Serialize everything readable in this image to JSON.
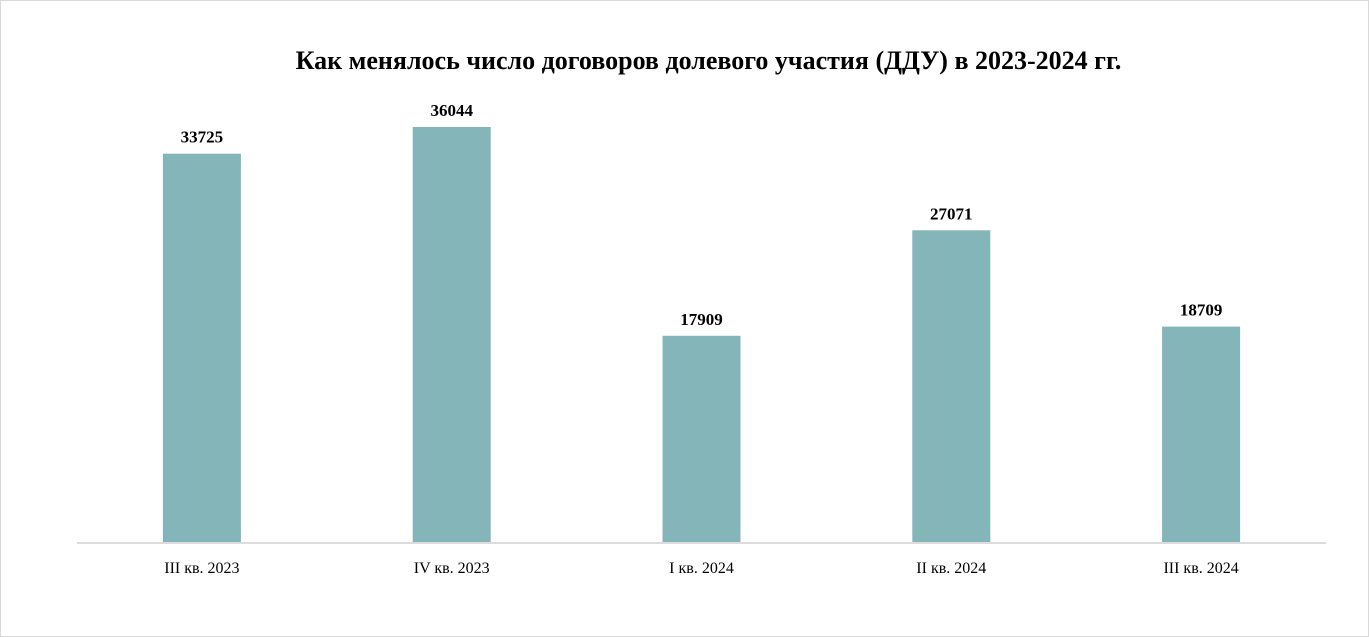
{
  "chart_data": {
    "type": "bar",
    "title": "Как менялось число договоров долевого участия (ДДУ) в 2023-2024 гг.",
    "categories": [
      "III кв. 2023",
      "IV кв. 2023",
      "I кв. 2024",
      "II кв. 2024",
      "III кв. 2024"
    ],
    "values": [
      33725,
      36044,
      17909,
      27071,
      18709
    ],
    "xlabel": "",
    "ylabel": "",
    "ylim": [
      0,
      36044
    ],
    "grid": false,
    "legend": "none",
    "data_labels": true,
    "colors": {
      "bar": "#84b5b9",
      "axis": "#d0d0d0",
      "text": "#000000",
      "border": "#d9d9d9"
    }
  }
}
